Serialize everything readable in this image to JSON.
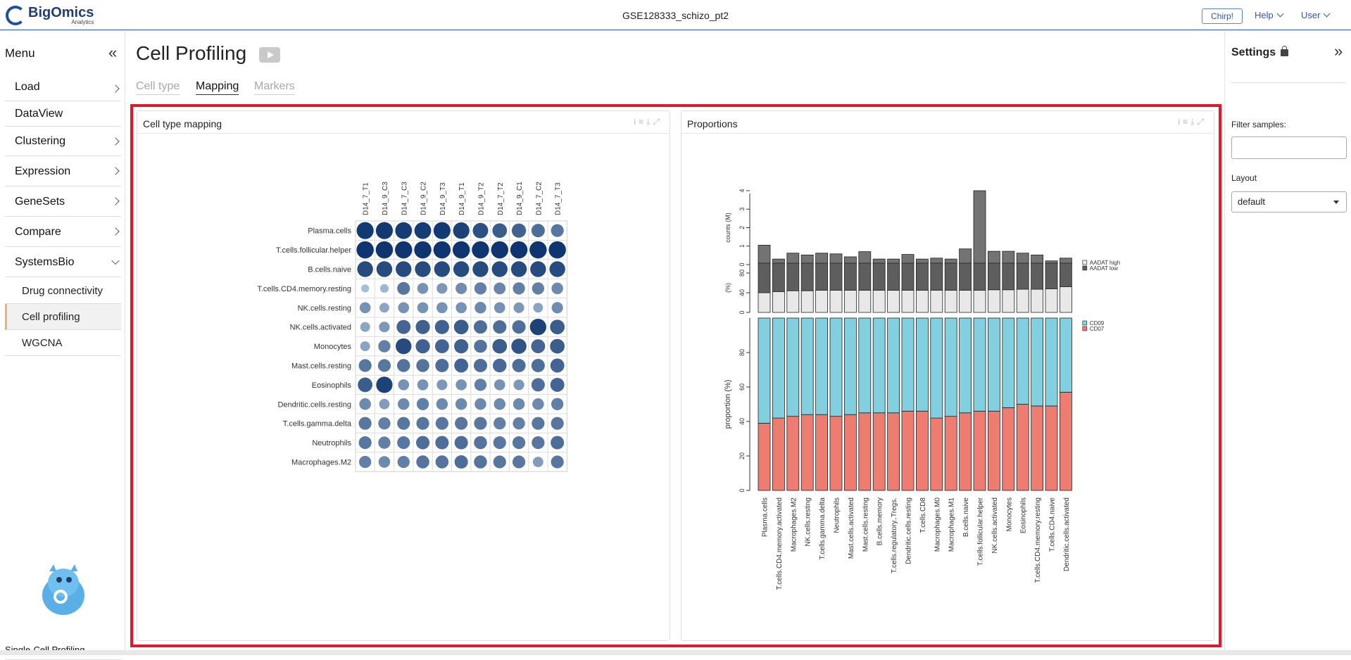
{
  "topbar": {
    "logo_main": "BigOmics",
    "logo_sub": "Analytics",
    "dataset": "GSE128333_schizo_pt2",
    "chirp": "Chirp!",
    "help": "Help",
    "user": "User"
  },
  "sidebar": {
    "title": "Menu",
    "items": [
      {
        "label": "Load",
        "arrow": "right"
      },
      {
        "label": "DataView",
        "arrow": "none"
      },
      {
        "label": "Clustering",
        "arrow": "right"
      },
      {
        "label": "Expression",
        "arrow": "right"
      },
      {
        "label": "GeneSets",
        "arrow": "right"
      },
      {
        "label": "Compare",
        "arrow": "right"
      },
      {
        "label": "SystemsBio",
        "arrow": "down"
      }
    ],
    "subitems": [
      {
        "label": "Drug connectivity",
        "active": false
      },
      {
        "label": "Cell profiling",
        "active": true
      },
      {
        "label": "WGCNA",
        "active": false
      }
    ],
    "module": "Single-Cell Profiling"
  },
  "main": {
    "title": "Cell Profiling",
    "tabs": [
      {
        "label": "Cell type",
        "active": false
      },
      {
        "label": "Mapping",
        "active": true
      },
      {
        "label": "Markers",
        "active": false
      }
    ],
    "left_card_title": "Cell type mapping",
    "right_card_title": "Proportions"
  },
  "settings": {
    "title": "Settings",
    "filter_label": "Filter samples:",
    "filter_value": "",
    "layout_label": "Layout",
    "layout_value": "default"
  },
  "chart_data": [
    {
      "type": "heatmap",
      "columns": [
        "D14_7_T1",
        "D14_9_C3",
        "D14_7_C3",
        "D14_9_C2",
        "D14_9_T3",
        "D14_9_T1",
        "D14_9_T2",
        "D14_7_T2",
        "D14_9_C1",
        "D14_7_C2",
        "D14_7_T3"
      ],
      "rows": [
        "Plasma.cells",
        "T.cells.follicular.helper",
        "B.cells.naive",
        "T.cells.CD4.memory.resting",
        "NK.cells.resting",
        "NK.cells.activated",
        "Monocytes",
        "Mast.cells.resting",
        "Eosinophils",
        "Dendritic.cells.resting",
        "T.cells.gamma.delta",
        "Neutrophils",
        "Macrophages.M2"
      ],
      "values": [
        [
          0.95,
          0.95,
          0.93,
          0.93,
          0.95,
          0.9,
          0.82,
          0.75,
          0.72,
          0.65,
          0.6
        ],
        [
          0.97,
          0.97,
          0.97,
          0.97,
          0.97,
          0.97,
          0.97,
          0.97,
          0.97,
          0.97,
          0.97
        ],
        [
          0.85,
          0.85,
          0.85,
          0.85,
          0.85,
          0.85,
          0.85,
          0.85,
          0.85,
          0.85,
          0.85
        ],
        [
          0.2,
          0.25,
          0.6,
          0.45,
          0.42,
          0.48,
          0.55,
          0.52,
          0.55,
          0.55,
          0.5
        ],
        [
          0.45,
          0.35,
          0.45,
          0.45,
          0.45,
          0.45,
          0.5,
          0.45,
          0.42,
          0.35,
          0.48
        ],
        [
          0.35,
          0.42,
          0.7,
          0.72,
          0.72,
          0.75,
          0.65,
          0.65,
          0.65,
          0.9,
          0.75
        ],
        [
          0.35,
          0.55,
          0.85,
          0.72,
          0.7,
          0.72,
          0.62,
          0.75,
          0.8,
          0.7,
          0.75
        ],
        [
          0.6,
          0.6,
          0.62,
          0.62,
          0.65,
          0.7,
          0.65,
          0.68,
          0.65,
          0.65,
          0.7
        ],
        [
          0.75,
          0.9,
          0.45,
          0.45,
          0.42,
          0.45,
          0.55,
          0.45,
          0.42,
          0.65,
          0.7
        ],
        [
          0.5,
          0.4,
          0.5,
          0.55,
          0.5,
          0.5,
          0.5,
          0.5,
          0.5,
          0.5,
          0.55
        ],
        [
          0.6,
          0.55,
          0.6,
          0.6,
          0.6,
          0.6,
          0.6,
          0.55,
          0.55,
          0.6,
          0.6
        ],
        [
          0.6,
          0.55,
          0.6,
          0.65,
          0.65,
          0.65,
          0.62,
          0.6,
          0.6,
          0.6,
          0.65
        ],
        [
          0.55,
          0.5,
          0.55,
          0.62,
          0.62,
          0.65,
          0.62,
          0.6,
          0.6,
          0.4,
          0.6
        ]
      ]
    },
    {
      "type": "bar",
      "categories": [
        "Plasma.cells",
        "T.cells.CD4.memory.activated",
        "Macrophages.M2",
        "NK.cells.resting",
        "T.cells.gamma.delta",
        "Neutrophils",
        "Mast.cells.activated",
        "Mast.cells.resting",
        "B.cells.memory",
        "T.cells.regulatory..Tregs.",
        "Dendritic.cells.resting",
        "T.cells.CD8",
        "Macrophages.M0",
        "Macrophages.M1",
        "B.cells.naive",
        "T.cells.follicular.helper",
        "NK.cells.activated",
        "Monocytes",
        "Eosinophils",
        "T.cells.CD4.memory.resting",
        "T.cells.CD4.naive",
        "Dendritic.cells.activated"
      ],
      "panels": [
        {
          "ylabel": "counts (M)",
          "ylim": [
            0,
            4
          ],
          "ticks": [
            0,
            1,
            2,
            3,
            4
          ],
          "values": [
            1.05,
            0.3,
            0.62,
            0.52,
            0.62,
            0.58,
            0.42,
            0.7,
            0.3,
            0.3,
            0.55,
            0.3,
            0.35,
            0.3,
            0.85,
            4.0,
            0.72,
            0.72,
            0.62,
            0.52,
            0.2,
            0.35
          ]
        },
        {
          "ylabel": "(%)",
          "ylim": [
            0,
            100
          ],
          "ticks": [
            0,
            40,
            80
          ],
          "series": [
            {
              "name": "AADAT low",
              "values": [
                60,
                58,
                56,
                56,
                55,
                55,
                55,
                55,
                55,
                55,
                55,
                55,
                55,
                55,
                55,
                55,
                54,
                54,
                53,
                53,
                52,
                48
              ]
            },
            {
              "name": "AADAT high",
              "values": [
                40,
                42,
                44,
                44,
                45,
                45,
                45,
                45,
                45,
                45,
                45,
                45,
                45,
                45,
                45,
                45,
                46,
                46,
                47,
                47,
                48,
                52
              ]
            }
          ]
        },
        {
          "ylabel": "proportion (%)",
          "ylim": [
            0,
            100
          ],
          "ticks": [
            0,
            20,
            40,
            60,
            80
          ],
          "series": [
            {
              "name": "CD07",
              "values": [
                39,
                42,
                43,
                44,
                44,
                43,
                44,
                45,
                45,
                45,
                46,
                46,
                42,
                43,
                45,
                46,
                46,
                48,
                50,
                49,
                49,
                57
              ]
            },
            {
              "name": "CD09",
              "values": [
                61,
                58,
                57,
                56,
                56,
                57,
                56,
                55,
                55,
                55,
                54,
                54,
                58,
                57,
                55,
                54,
                54,
                52,
                50,
                51,
                51,
                43
              ]
            }
          ]
        }
      ],
      "colors": {
        "counts": "#737373",
        "aadat_low": "#5e5e5e",
        "aadat_high": "#e8e8e8",
        "cd09": "#82cfe0",
        "cd07": "#ee7d71"
      }
    }
  ]
}
